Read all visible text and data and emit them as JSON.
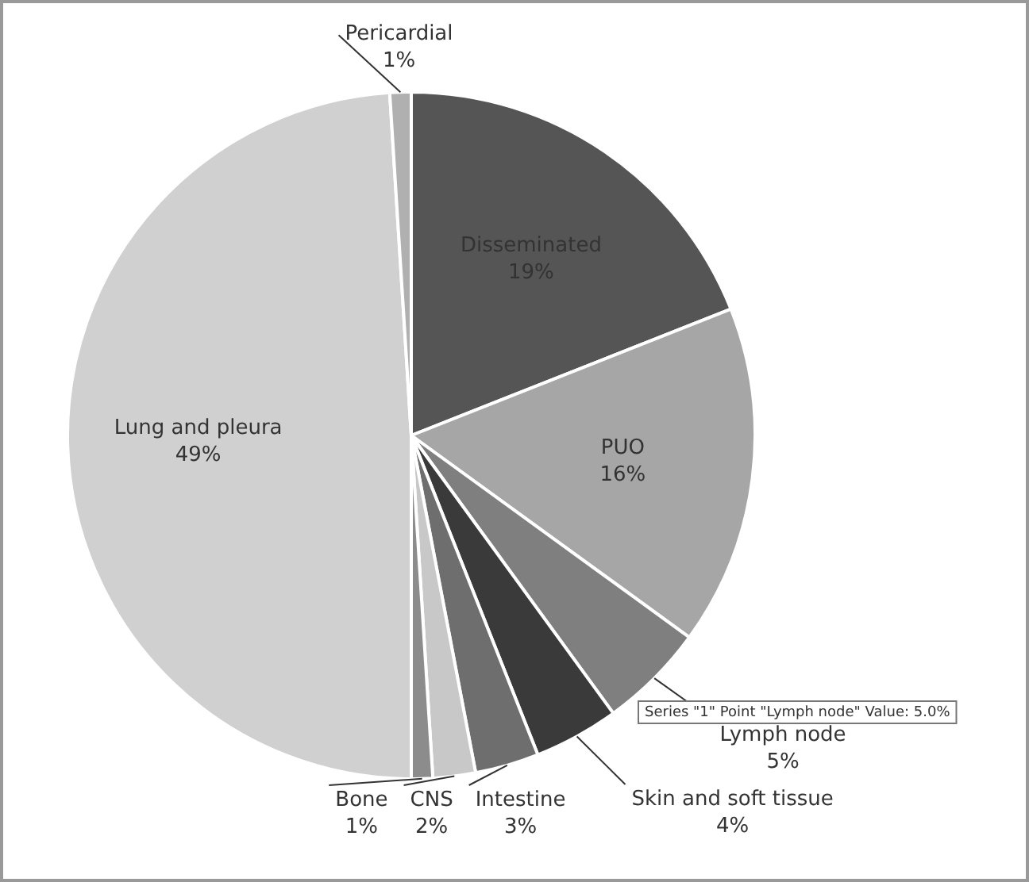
{
  "chart_data": {
    "type": "pie",
    "categories": [
      "Disseminated",
      "PUO",
      "Lymph node",
      "Skin and soft tissue",
      "Intestine",
      "CNS",
      "Bone",
      "Lung and pleura",
      "Pericardial"
    ],
    "values": [
      19,
      16,
      5,
      4,
      3,
      2,
      1,
      49,
      1
    ],
    "value_labels": [
      "19%",
      "16%",
      "5%",
      "4%",
      "3%",
      "2%",
      "1%",
      "49%",
      "1%"
    ],
    "colors": [
      "#555555",
      "#a6a6a6",
      "#7f7f7f",
      "#3a3a3a",
      "#6e6e6e",
      "#c8c8c8",
      "#8c8c8c",
      "#d0d0d0",
      "#b0b0b0"
    ],
    "annotations": [
      "Series \"1\" Point \"Lymph node\" Value: 5.0%"
    ],
    "legend": false
  }
}
